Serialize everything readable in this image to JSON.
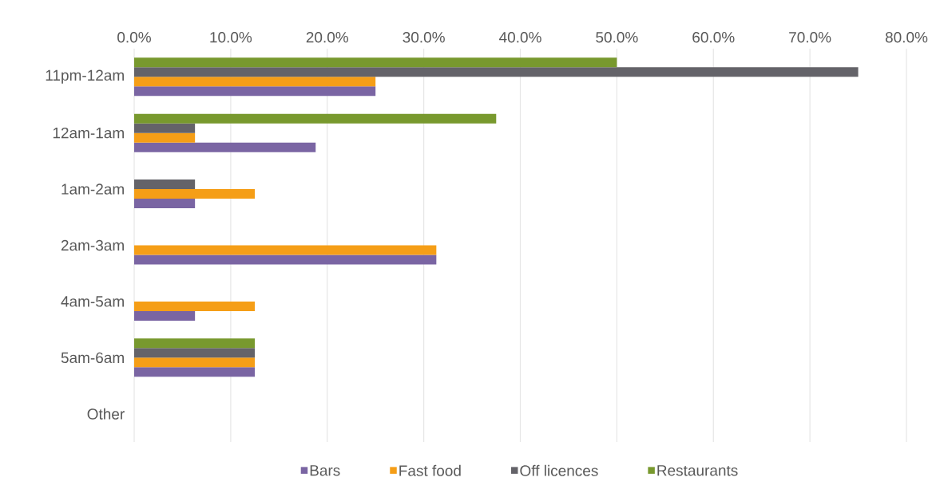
{
  "chart_data": {
    "type": "bar",
    "orientation": "horizontal",
    "categories": [
      "11pm-12am",
      "12am-1am",
      "1am-2am",
      "2am-3am",
      "4am-5am",
      "5am-6am",
      "Other"
    ],
    "series": [
      {
        "name": "Bars",
        "color": "#7a65a3",
        "values": [
          25,
          18.8,
          6.3,
          31.3,
          6.3,
          12.5,
          null
        ]
      },
      {
        "name": "Fast food",
        "color": "#f59e17",
        "values": [
          25,
          6.3,
          12.5,
          31.3,
          12.5,
          12.5,
          null
        ]
      },
      {
        "name": "Off licences",
        "color": "#646369",
        "values": [
          75,
          6.3,
          6.3,
          null,
          null,
          12.5,
          null
        ]
      },
      {
        "name": "Restaurants",
        "color": "#78992e",
        "values": [
          50,
          37.5,
          null,
          null,
          null,
          12.5,
          null
        ]
      }
    ],
    "xlim": [
      0,
      80
    ],
    "xticks": [
      {
        "value": 0,
        "label": "0.0%"
      },
      {
        "value": 10,
        "label": "10.0%"
      },
      {
        "value": 20,
        "label": "20.0%"
      },
      {
        "value": 30,
        "label": "30.0%"
      },
      {
        "value": 40,
        "label": "40.0%"
      },
      {
        "value": 50,
        "label": "50.0%"
      },
      {
        "value": 60,
        "label": "60.0%"
      },
      {
        "value": 70,
        "label": "70.0%"
      },
      {
        "value": 80,
        "label": "80.0%"
      }
    ],
    "grid": "x",
    "legend": "bottom"
  }
}
